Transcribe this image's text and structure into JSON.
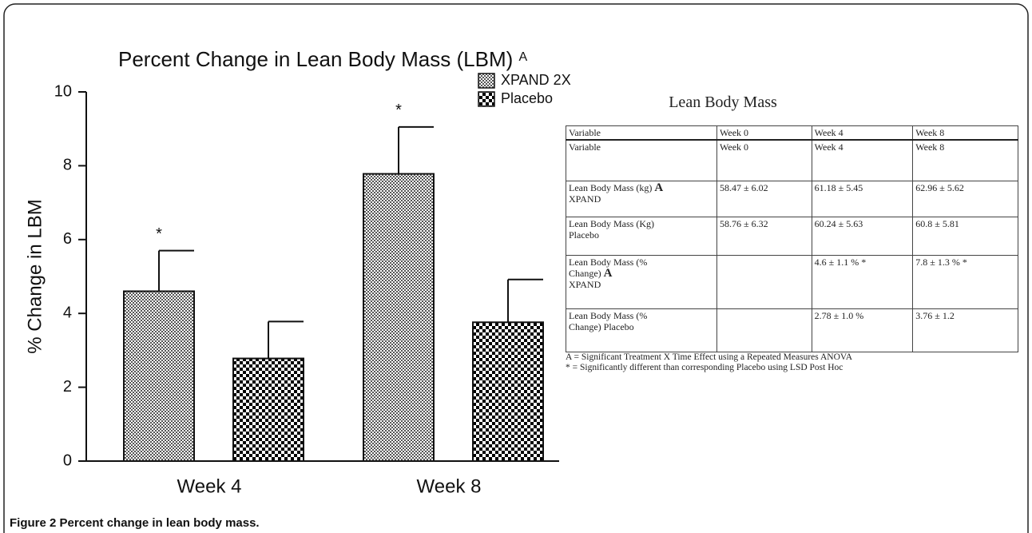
{
  "chart_data": {
    "type": "bar",
    "title": "Percent Change in Lean Body Mass (LBM)",
    "title_note": "A",
    "ylabel": "% Change in LBM",
    "categories": [
      "Week 4",
      "Week 8"
    ],
    "series": [
      {
        "name": "XPAND 2X",
        "color": "#9a9a9a",
        "values": [
          4.6,
          7.78
        ],
        "errors": [
          1.1,
          1.27
        ],
        "annotations": [
          "*",
          "*"
        ]
      },
      {
        "name": "Placebo",
        "color": "#000000",
        "values": [
          2.78,
          3.76
        ],
        "errors": [
          1.0,
          1.16
        ]
      }
    ],
    "ylim": [
      0,
      10
    ],
    "yticks": [
      0,
      2,
      4,
      6,
      8,
      10
    ],
    "grid": false,
    "legend": "top-right"
  },
  "table": {
    "title": "Lean Body Mass",
    "header": [
      "Variable",
      "Week 0",
      "Week 4",
      "Week 8"
    ],
    "rows": [
      [
        [
          "Variable"
        ],
        [
          "Week 0"
        ],
        [
          "Week 4"
        ],
        [
          "Week 8"
        ]
      ],
      [
        [
          {
            "text": "Lean Body Mass (kg) ",
            "bold": "A"
          },
          "XPAND"
        ],
        [
          "58.47 ± 6.02"
        ],
        [
          "61.18 ± 5.45"
        ],
        [
          "62.96 ± 5.62"
        ]
      ],
      [
        [
          "Lean Body Mass (Kg)",
          "Placebo"
        ],
        [
          "58.76 ± 6.32"
        ],
        [
          "60.24 ± 5.63"
        ],
        [
          "60.8 ± 5.81"
        ]
      ],
      [
        [
          "Lean Body Mass (%",
          {
            "text": "Change) ",
            "bold": "A"
          },
          "XPAND"
        ],
        [],
        [
          "4.6  ± 1.1 % *"
        ],
        [
          "7.8  ± 1.3 % *"
        ]
      ],
      [
        [
          "Lean Body Mass (%",
          "Change) Placebo"
        ],
        [],
        [
          "2.78  ± 1.0 %"
        ],
        [
          "3.76  ± 1.2"
        ]
      ]
    ],
    "footnotes": [
      "A = Significant Treatment X Time Effect using a Repeated Measures ANOVA",
      "* = Significantly different than corresponding Placebo using LSD Post Hoc"
    ]
  },
  "caption": "Figure 2 Percent change in lean body mass."
}
